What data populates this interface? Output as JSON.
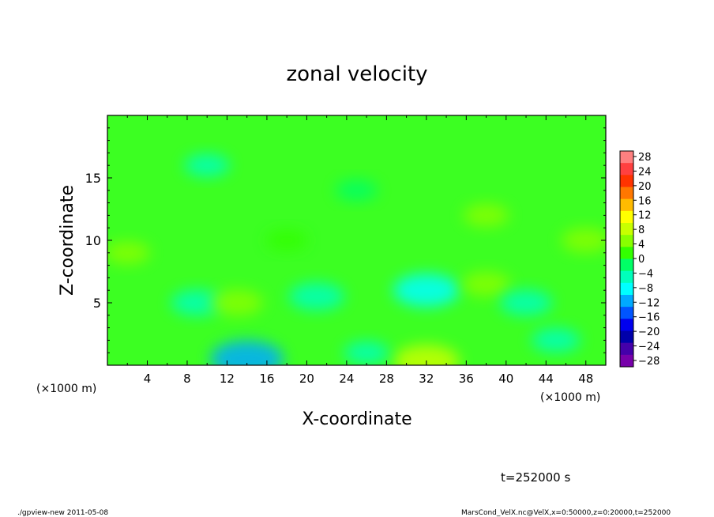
{
  "chart_data": {
    "type": "heatmap",
    "title": "zonal velocity",
    "xlabel": "X-coordinate",
    "ylabel": "Z-coordinate",
    "x_unit_left": "(×1000 m)",
    "x_unit_right": "(×1000 m)",
    "xlim": [
      0,
      50
    ],
    "ylim": [
      0,
      20
    ],
    "x_ticks": [
      "4",
      "8",
      "12",
      "16",
      "20",
      "24",
      "28",
      "32",
      "36",
      "40",
      "44",
      "48"
    ],
    "x_tick_values": [
      4,
      8,
      12,
      16,
      20,
      24,
      28,
      32,
      36,
      40,
      44,
      48
    ],
    "y_ticks": [
      "5",
      "10",
      "15"
    ],
    "y_tick_values": [
      5,
      10,
      15
    ],
    "colorbar": {
      "labels": [
        "28",
        "24",
        "20",
        "16",
        "12",
        "8",
        "4",
        "0",
        "−4",
        "−8",
        "−12",
        "−16",
        "−20",
        "−24",
        "−28"
      ],
      "range": [
        -30,
        30
      ],
      "colors": [
        "#ff8080",
        "#ff4040",
        "#ff3300",
        "#ff7700",
        "#ffbb00",
        "#ffff00",
        "#c8ff00",
        "#88ff00",
        "#33ff00",
        "#00ff66",
        "#00ffbb",
        "#00ffff",
        "#00aaff",
        "#0055ff",
        "#0000ee",
        "#0000aa",
        "#4400aa",
        "#7700aa"
      ]
    },
    "grid": false,
    "field_features": [
      {
        "x": 14,
        "z": 0.5,
        "value": -12
      },
      {
        "x": 32,
        "z": 0.3,
        "value": 10
      },
      {
        "x": 9,
        "z": 5,
        "value": -6
      },
      {
        "x": 13,
        "z": 5,
        "value": 6
      },
      {
        "x": 21,
        "z": 5.5,
        "value": -7
      },
      {
        "x": 32,
        "z": 6,
        "value": -10
      },
      {
        "x": 38,
        "z": 6.5,
        "value": 5
      },
      {
        "x": 42,
        "z": 5,
        "value": -6
      },
      {
        "x": 48,
        "z": 10,
        "value": 5
      },
      {
        "x": 25,
        "z": 14,
        "value": -3
      },
      {
        "x": 10,
        "z": 16,
        "value": -4
      },
      {
        "x": 38,
        "z": 12,
        "value": 4
      },
      {
        "x": 2,
        "z": 9,
        "value": 4
      },
      {
        "x": 26,
        "z": 1,
        "value": -4
      },
      {
        "x": 45,
        "z": 2,
        "value": -5
      },
      {
        "x": 18,
        "z": 10,
        "value": 3
      }
    ]
  },
  "annotations": {
    "time": "t=252000 s",
    "footer_left": "./gpview-new  2011-05-08",
    "footer_right": "MarsCond_VelX.nc@VelX,x=0:50000,z=0:20000,t=252000"
  }
}
